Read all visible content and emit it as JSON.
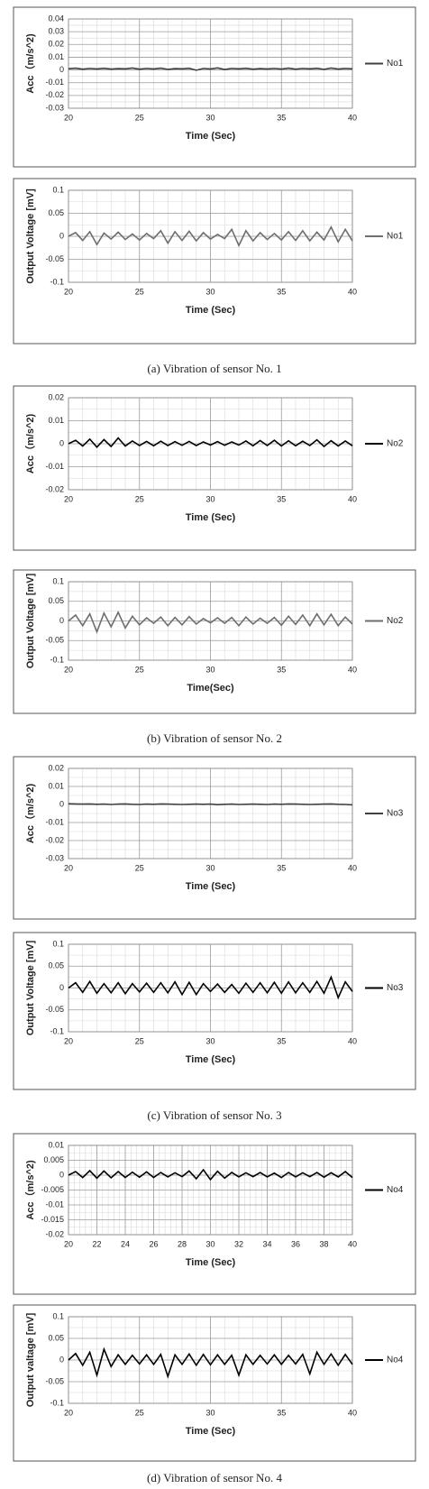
{
  "captions": [
    "(a) Vibration of sensor No. 1",
    "(b) Vibration of sensor No. 2",
    "(c) Vibration of sensor No. 3",
    "(d) Vibration of sensor No. 4"
  ],
  "chart_data": [
    {
      "type": "line",
      "y_label": "Acc（m/s^2)",
      "x_label": "Time (Sec)",
      "xlim": [
        20,
        40
      ],
      "xticks": [
        20,
        25,
        30,
        35,
        40
      ],
      "ylim": [
        -0.03,
        0.04
      ],
      "yticks": [
        -0.03,
        -0.02,
        -0.01,
        0,
        0.01,
        0.02,
        0.03,
        0.04
      ],
      "grid": true,
      "x": [
        20,
        20.5,
        21,
        21.5,
        22,
        22.5,
        23,
        23.5,
        24,
        24.5,
        25,
        25.5,
        26,
        26.5,
        27,
        27.5,
        28,
        28.5,
        29,
        29.5,
        30,
        30.5,
        31,
        31.5,
        32,
        32.5,
        33,
        33.5,
        34,
        34.5,
        35,
        35.5,
        36,
        36.5,
        37,
        37.5,
        38,
        38.5,
        39,
        39.5,
        40
      ],
      "series": [
        {
          "name": "No1",
          "color": "#404040",
          "values": [
            0.001,
            0.0014,
            0.0006,
            0.0012,
            0.0008,
            0.0013,
            0.0007,
            0.0011,
            0.0009,
            0.0015,
            0.0006,
            0.0012,
            0.0008,
            0.0014,
            0.0005,
            0.0011,
            0.0009,
            0.0013,
            -0.0002,
            0.0012,
            0.0008,
            0.0016,
            0.0004,
            0.0012,
            0.0009,
            0.0013,
            0.0006,
            0.0011,
            0.0008,
            0.0012,
            0.0007,
            0.0014,
            0.0006,
            0.0012,
            0.0009,
            0.0013,
            0.0005,
            0.0015,
            0.0007,
            0.0012,
            0.0009
          ]
        }
      ]
    },
    {
      "type": "line",
      "y_label": "Output Voltage [mV]",
      "x_label": "Time (Sec)",
      "xlim": [
        20,
        40
      ],
      "xticks": [
        20,
        25,
        30,
        35,
        40
      ],
      "ylim": [
        -0.1,
        0.1
      ],
      "yticks": [
        -0.1,
        -0.05,
        0,
        0.05,
        0.1
      ],
      "grid": true,
      "x": [
        20,
        20.5,
        21,
        21.5,
        22,
        22.5,
        23,
        23.5,
        24,
        24.5,
        25,
        25.5,
        26,
        26.5,
        27,
        27.5,
        28,
        28.5,
        29,
        29.5,
        30,
        30.5,
        31,
        31.5,
        32,
        32.5,
        33,
        33.5,
        34,
        34.5,
        35,
        35.5,
        36,
        36.5,
        37,
        37.5,
        38,
        38.5,
        39,
        39.5,
        40
      ],
      "series": [
        {
          "name": "No1",
          "color": "#6e6e6e",
          "values": [
            0,
            0.008,
            -0.009,
            0.01,
            -0.018,
            0.007,
            -0.006,
            0.009,
            -0.007,
            0.005,
            -0.008,
            0.006,
            -0.005,
            0.012,
            -0.015,
            0.01,
            -0.009,
            0.011,
            -0.01,
            0.008,
            -0.006,
            0.004,
            -0.005,
            0.015,
            -0.02,
            0.012,
            -0.01,
            0.008,
            -0.007,
            0.006,
            -0.008,
            0.01,
            -0.009,
            0.012,
            -0.01,
            0.009,
            -0.008,
            0.02,
            -0.012,
            0.015,
            -0.01
          ]
        }
      ]
    },
    {
      "type": "line",
      "y_label": "Acc（m/s^2)",
      "x_label": "Time (Sec)",
      "xlim": [
        20,
        40
      ],
      "xticks": [
        20,
        25,
        30,
        35,
        40
      ],
      "ylim": [
        -0.02,
        0.02
      ],
      "yticks": [
        -0.02,
        -0.01,
        0,
        0.01,
        0.02
      ],
      "grid": true,
      "x": [
        20,
        20.5,
        21,
        21.5,
        22,
        22.5,
        23,
        23.5,
        24,
        24.5,
        25,
        25.5,
        26,
        26.5,
        27,
        27.5,
        28,
        28.5,
        29,
        29.5,
        30,
        30.5,
        31,
        31.5,
        32,
        32.5,
        33,
        33.5,
        34,
        34.5,
        35,
        35.5,
        36,
        36.5,
        37,
        37.5,
        38,
        38.5,
        39,
        39.5,
        40
      ],
      "series": [
        {
          "name": "No2",
          "color": "#000000",
          "values": [
            0,
            0.0015,
            -0.001,
            0.002,
            -0.0015,
            0.0018,
            -0.0012,
            0.0025,
            -0.001,
            0.0012,
            -0.0008,
            0.001,
            -0.0009,
            0.0011,
            -0.0008,
            0.0009,
            -0.0007,
            0.001,
            -0.0008,
            0.0008,
            -0.0006,
            0.0009,
            -0.0007,
            0.0008,
            -0.0006,
            0.0012,
            -0.0009,
            0.0014,
            -0.0008,
            0.0015,
            -0.001,
            0.0013,
            -0.0009,
            0.0011,
            -0.0008,
            0.0017,
            -0.0012,
            0.0013,
            -0.001,
            0.0012,
            -0.0009
          ]
        }
      ]
    },
    {
      "type": "line",
      "y_label": "Output Voltage [mV]",
      "x_label": "Time(Sec)",
      "xlim": [
        20,
        40
      ],
      "xticks": [
        20,
        25,
        30,
        35,
        40
      ],
      "ylim": [
        -0.1,
        0.1
      ],
      "yticks": [
        -0.1,
        -0.05,
        0,
        0.05,
        0.1
      ],
      "grid": true,
      "x": [
        20,
        20.5,
        21,
        21.5,
        22,
        22.5,
        23,
        23.5,
        24,
        24.5,
        25,
        25.5,
        26,
        26.5,
        27,
        27.5,
        28,
        28.5,
        29,
        29.5,
        30,
        30.5,
        31,
        31.5,
        32,
        32.5,
        33,
        33.5,
        34,
        34.5,
        35,
        35.5,
        36,
        36.5,
        37,
        37.5,
        38,
        38.5,
        39,
        39.5,
        40
      ],
      "series": [
        {
          "name": "No2",
          "color": "#6e6e6e",
          "values": [
            0,
            0.015,
            -0.012,
            0.018,
            -0.028,
            0.02,
            -0.015,
            0.022,
            -0.018,
            0.012,
            -0.01,
            0.008,
            -0.006,
            0.01,
            -0.012,
            0.009,
            -0.01,
            0.011,
            -0.008,
            0.006,
            -0.005,
            0.008,
            -0.006,
            0.009,
            -0.012,
            0.01,
            -0.008,
            0.007,
            -0.006,
            0.009,
            -0.011,
            0.012,
            -0.009,
            0.015,
            -0.012,
            0.018,
            -0.01,
            0.017,
            -0.012,
            0.01,
            -0.008
          ]
        }
      ]
    },
    {
      "type": "line",
      "y_label": "Acc（m/s^2)",
      "x_label": "Time (Sec)",
      "xlim": [
        20,
        40
      ],
      "xticks": [
        20,
        25,
        30,
        35,
        40
      ],
      "ylim": [
        -0.03,
        0.02
      ],
      "yticks": [
        -0.03,
        -0.02,
        -0.01,
        0,
        0.01,
        0.02
      ],
      "grid": true,
      "x": [
        20,
        20.5,
        21,
        21.5,
        22,
        22.5,
        23,
        23.5,
        24,
        24.5,
        25,
        25.5,
        26,
        26.5,
        27,
        27.5,
        28,
        28.5,
        29,
        29.5,
        30,
        30.5,
        31,
        31.5,
        32,
        32.5,
        33,
        33.5,
        34,
        34.5,
        35,
        35.5,
        36,
        36.5,
        37,
        37.5,
        38,
        38.5,
        39,
        39.5,
        40
      ],
      "series": [
        {
          "name": "No3",
          "color": "#404040",
          "values": [
            0.0004,
            0.0003,
            0.0002,
            0.0003,
            0.0001,
            0.0002,
            0,
            0.0002,
            0.0003,
            0.0001,
            0,
            0.0002,
            0.0001,
            0.0003,
            0.0002,
            0.0001,
            0,
            0.0001,
            0.0002,
            0.0001,
            0.0002,
            -0.0001,
            0.0001,
            0.0002,
            0,
            0.0001,
            0.0002,
            0.0001,
            0,
            0.0002,
            0.0001,
            0.0003,
            0.0002,
            0.0001,
            0,
            0.0001,
            0.0002,
            0.0003,
            0.0001,
            0,
            -0.0002
          ]
        }
      ]
    },
    {
      "type": "line",
      "y_label": "Output Voltage [mV]",
      "x_label": "Time (Sec)",
      "xlim": [
        20,
        40
      ],
      "xticks": [
        20,
        25,
        30,
        35,
        40
      ],
      "ylim": [
        -0.1,
        0.1
      ],
      "yticks": [
        -0.1,
        -0.05,
        0,
        0.05,
        0.1
      ],
      "grid": true,
      "x": [
        20,
        20.5,
        21,
        21.5,
        22,
        22.5,
        23,
        23.5,
        24,
        24.5,
        25,
        25.5,
        26,
        26.5,
        27,
        27.5,
        28,
        28.5,
        29,
        29.5,
        30,
        30.5,
        31,
        31.5,
        32,
        32.5,
        33,
        33.5,
        34,
        34.5,
        35,
        35.5,
        36,
        36.5,
        37,
        37.5,
        38,
        38.5,
        39,
        39.5,
        40
      ],
      "series": [
        {
          "name": "No3",
          "color": "#000000",
          "values": [
            0,
            0.012,
            -0.01,
            0.015,
            -0.012,
            0.01,
            -0.011,
            0.012,
            -0.013,
            0.01,
            -0.009,
            0.011,
            -0.01,
            0.012,
            -0.011,
            0.014,
            -0.015,
            0.013,
            -0.015,
            0.01,
            -0.008,
            0.009,
            -0.01,
            0.008,
            -0.012,
            0.011,
            -0.01,
            0.012,
            -0.011,
            0.013,
            -0.012,
            0.014,
            -0.011,
            0.012,
            -0.01,
            0.015,
            -0.012,
            0.025,
            -0.022,
            0.014,
            -0.008
          ]
        }
      ]
    },
    {
      "type": "line",
      "y_label": "Acc（m/s^2)",
      "x_label": "Time (Sec)",
      "xlim": [
        20,
        40
      ],
      "xticks": [
        20,
        22,
        24,
        26,
        28,
        30,
        32,
        34,
        36,
        38,
        40
      ],
      "ylim": [
        -0.02,
        0.01
      ],
      "yticks": [
        -0.02,
        -0.015,
        -0.01,
        -0.005,
        0,
        0.005,
        0.01
      ],
      "grid": true,
      "x": [
        20,
        20.5,
        21,
        21.5,
        22,
        22.5,
        23,
        23.5,
        24,
        24.5,
        25,
        25.5,
        26,
        26.5,
        27,
        27.5,
        28,
        28.5,
        29,
        29.5,
        30,
        30.5,
        31,
        31.5,
        32,
        32.5,
        33,
        33.5,
        34,
        34.5,
        35,
        35.5,
        36,
        36.5,
        37,
        37.5,
        38,
        38.5,
        39,
        39.5,
        40
      ],
      "series": [
        {
          "name": "No4",
          "color": "#000000",
          "values": [
            0,
            0.0012,
            -0.0008,
            0.0015,
            -0.001,
            0.0014,
            -0.0009,
            0.0012,
            -0.0008,
            0.001,
            -0.0007,
            0.0011,
            -0.0008,
            0.0009,
            -0.0006,
            0.0008,
            -0.0005,
            0.0014,
            -0.0012,
            0.0018,
            -0.0015,
            0.0013,
            -0.001,
            0.0009,
            -0.0006,
            0.0008,
            -0.0005,
            0.0009,
            -0.0006,
            0.0007,
            -0.0008,
            0.0009,
            -0.0006,
            0.0008,
            -0.0005,
            0.0009,
            -0.0007,
            0.0008,
            -0.0006,
            0.0012,
            -0.0008
          ]
        }
      ]
    },
    {
      "type": "line",
      "y_label": "Output valtage [mV]",
      "x_label": "Time (Sec)",
      "xlim": [
        20,
        40
      ],
      "xticks": [
        20,
        25,
        30,
        35,
        40
      ],
      "ylim": [
        -0.1,
        0.1
      ],
      "yticks": [
        -0.1,
        -0.05,
        0,
        0.05,
        0.1
      ],
      "grid": true,
      "x": [
        20,
        20.5,
        21,
        21.5,
        22,
        22.5,
        23,
        23.5,
        24,
        24.5,
        25,
        25.5,
        26,
        26.5,
        27,
        27.5,
        28,
        28.5,
        29,
        29.5,
        30,
        30.5,
        31,
        31.5,
        32,
        32.5,
        33,
        33.5,
        34,
        34.5,
        35,
        35.5,
        36,
        36.5,
        37,
        37.5,
        38,
        38.5,
        39,
        39.5,
        40
      ],
      "series": [
        {
          "name": "No4",
          "color": "#000000",
          "values": [
            0,
            0.015,
            -0.012,
            0.018,
            -0.035,
            0.025,
            -0.015,
            0.012,
            -0.01,
            0.011,
            -0.009,
            0.012,
            -0.01,
            0.013,
            -0.038,
            0.012,
            -0.01,
            0.014,
            -0.012,
            0.013,
            -0.011,
            0.012,
            -0.01,
            0.011,
            -0.035,
            0.012,
            -0.01,
            0.011,
            -0.009,
            0.012,
            -0.01,
            0.011,
            -0.009,
            0.013,
            -0.032,
            0.018,
            -0.01,
            0.014,
            -0.012,
            0.013,
            -0.01
          ]
        }
      ]
    }
  ]
}
